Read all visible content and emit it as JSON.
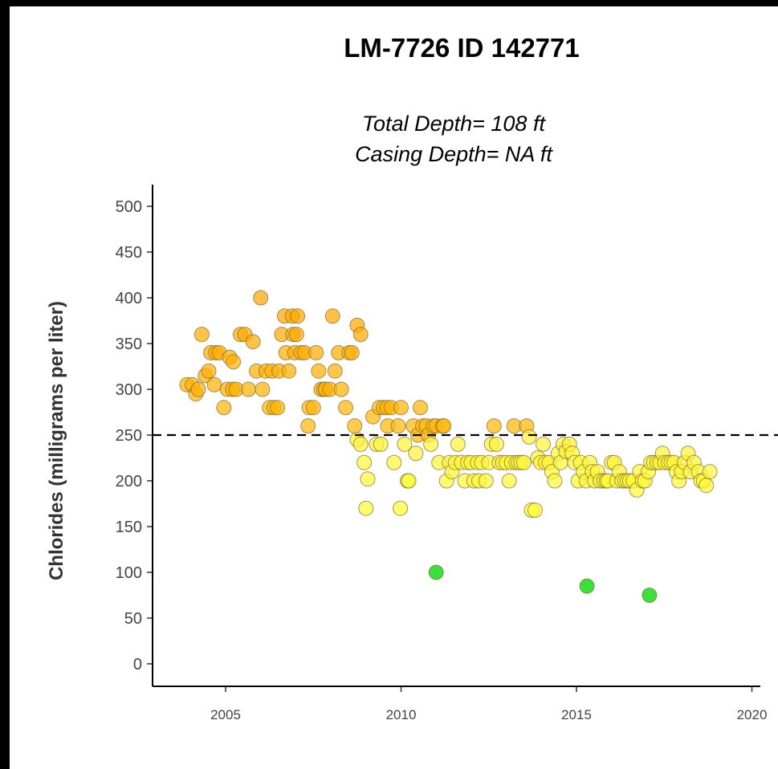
{
  "chart_data": {
    "type": "scatter",
    "title": "LM-7726 ID 142771",
    "subtitle_lines": [
      "Total Depth= 108 ft",
      "Casing Depth= NA ft"
    ],
    "xlabel": "",
    "ylabel": "Chlorides (milligrams per liter)",
    "xlim": [
      2003.4,
      2020.2
    ],
    "ylim": [
      -10,
      520
    ],
    "x_ticks": [
      2005,
      2010,
      2015,
      2020
    ],
    "y_ticks": [
      0,
      50,
      100,
      150,
      200,
      250,
      300,
      350,
      400,
      450,
      500
    ],
    "reference_line": {
      "y": 250,
      "style": "dashed"
    },
    "grid": false,
    "legend": "none",
    "colors": {
      "high": "#FFA500",
      "mid": "#FFFF33",
      "low": "#33DD33",
      "outline": "#7a6a30",
      "refline": "#000000"
    },
    "points": [
      [
        2003.9,
        305
      ],
      [
        2004.05,
        305
      ],
      [
        2004.15,
        295
      ],
      [
        2004.22,
        300
      ],
      [
        2004.32,
        360
      ],
      [
        2004.42,
        315
      ],
      [
        2004.52,
        320
      ],
      [
        2004.58,
        340
      ],
      [
        2004.68,
        305
      ],
      [
        2004.72,
        340
      ],
      [
        2004.82,
        340
      ],
      [
        2004.95,
        280
      ],
      [
        2005.05,
        300
      ],
      [
        2005.12,
        335
      ],
      [
        2005.2,
        300
      ],
      [
        2005.22,
        330
      ],
      [
        2005.3,
        300
      ],
      [
        2005.42,
        360
      ],
      [
        2005.55,
        360
      ],
      [
        2005.65,
        300
      ],
      [
        2005.78,
        352
      ],
      [
        2005.88,
        320
      ],
      [
        2006.0,
        400
      ],
      [
        2006.05,
        300
      ],
      [
        2006.15,
        320
      ],
      [
        2006.25,
        280
      ],
      [
        2006.32,
        320
      ],
      [
        2006.38,
        280
      ],
      [
        2006.48,
        280
      ],
      [
        2006.52,
        320
      ],
      [
        2006.6,
        360
      ],
      [
        2006.68,
        380
      ],
      [
        2006.72,
        340
      ],
      [
        2006.8,
        320
      ],
      [
        2006.9,
        380
      ],
      [
        2006.92,
        360
      ],
      [
        2006.97,
        340
      ],
      [
        2007.02,
        360
      ],
      [
        2007.05,
        380
      ],
      [
        2007.15,
        340
      ],
      [
        2007.25,
        340
      ],
      [
        2007.35,
        260
      ],
      [
        2007.38,
        280
      ],
      [
        2007.5,
        280
      ],
      [
        2007.58,
        340
      ],
      [
        2007.65,
        320
      ],
      [
        2007.72,
        300
      ],
      [
        2007.8,
        300
      ],
      [
        2007.85,
        300
      ],
      [
        2007.97,
        300
      ],
      [
        2008.05,
        380
      ],
      [
        2008.12,
        320
      ],
      [
        2008.22,
        340
      ],
      [
        2008.3,
        300
      ],
      [
        2008.42,
        280
      ],
      [
        2008.52,
        340
      ],
      [
        2008.6,
        340
      ],
      [
        2008.68,
        260
      ],
      [
        2008.75,
        370
      ],
      [
        2008.85,
        360
      ],
      [
        2008.75,
        245
      ],
      [
        2008.85,
        240
      ],
      [
        2008.95,
        220
      ],
      [
        2009.0,
        170
      ],
      [
        2009.05,
        202
      ],
      [
        2009.2,
        270
      ],
      [
        2009.3,
        240
      ],
      [
        2009.38,
        280
      ],
      [
        2009.42,
        240
      ],
      [
        2009.5,
        280
      ],
      [
        2009.6,
        280
      ],
      [
        2009.62,
        260
      ],
      [
        2009.72,
        280
      ],
      [
        2009.8,
        220
      ],
      [
        2009.92,
        260
      ],
      [
        2010.0,
        280
      ],
      [
        2009.98,
        170
      ],
      [
        2010.1,
        240
      ],
      [
        2010.18,
        200
      ],
      [
        2010.22,
        200
      ],
      [
        2010.35,
        260
      ],
      [
        2010.42,
        230
      ],
      [
        2010.48,
        250
      ],
      [
        2010.55,
        280
      ],
      [
        2010.62,
        260
      ],
      [
        2010.72,
        260
      ],
      [
        2010.78,
        250
      ],
      [
        2010.85,
        240
      ],
      [
        2010.92,
        260
      ],
      [
        2011.0,
        260
      ],
      [
        2011.08,
        220
      ],
      [
        2011.18,
        260
      ],
      [
        2011.22,
        260
      ],
      [
        2011.3,
        200
      ],
      [
        2011.38,
        220
      ],
      [
        2011.45,
        210
      ],
      [
        2011.55,
        220
      ],
      [
        2011.62,
        240
      ],
      [
        2011.72,
        220
      ],
      [
        2011.82,
        200
      ],
      [
        2011.9,
        220
      ],
      [
        2012.0,
        220
      ],
      [
        2012.08,
        200
      ],
      [
        2012.18,
        220
      ],
      [
        2012.22,
        200
      ],
      [
        2012.3,
        220
      ],
      [
        2012.42,
        200
      ],
      [
        2012.5,
        220
      ],
      [
        2012.58,
        240
      ],
      [
        2012.65,
        260
      ],
      [
        2012.72,
        240
      ],
      [
        2012.8,
        220
      ],
      [
        2012.9,
        220
      ],
      [
        2013.0,
        220
      ],
      [
        2013.08,
        200
      ],
      [
        2013.15,
        220
      ],
      [
        2013.22,
        260
      ],
      [
        2013.28,
        220
      ],
      [
        2013.35,
        220
      ],
      [
        2013.42,
        220
      ],
      [
        2013.5,
        220
      ],
      [
        2013.58,
        260
      ],
      [
        2013.65,
        248
      ],
      [
        2013.72,
        168
      ],
      [
        2013.82,
        168
      ],
      [
        2013.9,
        225
      ],
      [
        2013.98,
        220
      ],
      [
        2014.05,
        240
      ],
      [
        2014.12,
        220
      ],
      [
        2014.22,
        220
      ],
      [
        2014.3,
        210
      ],
      [
        2014.38,
        200
      ],
      [
        2014.48,
        230
      ],
      [
        2014.55,
        220
      ],
      [
        2014.62,
        240
      ],
      [
        2014.7,
        232
      ],
      [
        2014.8,
        240
      ],
      [
        2014.88,
        230
      ],
      [
        2014.95,
        220
      ],
      [
        2015.05,
        200
      ],
      [
        2015.12,
        220
      ],
      [
        2015.2,
        210
      ],
      [
        2015.28,
        200
      ],
      [
        2015.38,
        220
      ],
      [
        2015.45,
        210
      ],
      [
        2015.52,
        200
      ],
      [
        2015.6,
        210
      ],
      [
        2015.68,
        200
      ],
      [
        2015.78,
        200
      ],
      [
        2015.85,
        200
      ],
      [
        2015.9,
        200
      ],
      [
        2016.0,
        220
      ],
      [
        2016.08,
        220
      ],
      [
        2016.15,
        200
      ],
      [
        2016.22,
        210
      ],
      [
        2016.3,
        200
      ],
      [
        2016.38,
        200
      ],
      [
        2016.45,
        200
      ],
      [
        2016.52,
        200
      ],
      [
        2016.62,
        200
      ],
      [
        2016.72,
        190
      ],
      [
        2016.8,
        210
      ],
      [
        2016.88,
        200
      ],
      [
        2016.95,
        200
      ],
      [
        2017.05,
        210
      ],
      [
        2017.12,
        220
      ],
      [
        2017.2,
        220
      ],
      [
        2017.3,
        220
      ],
      [
        2017.38,
        220
      ],
      [
        2017.45,
        230
      ],
      [
        2017.52,
        220
      ],
      [
        2017.62,
        220
      ],
      [
        2017.7,
        220
      ],
      [
        2017.78,
        220
      ],
      [
        2017.85,
        210
      ],
      [
        2017.92,
        200
      ],
      [
        2018.0,
        210
      ],
      [
        2018.08,
        220
      ],
      [
        2018.18,
        230
      ],
      [
        2018.25,
        210
      ],
      [
        2018.35,
        220
      ],
      [
        2018.48,
        210
      ],
      [
        2018.55,
        200
      ],
      [
        2018.62,
        200
      ],
      [
        2018.7,
        195
      ],
      [
        2018.8,
        210
      ],
      [
        2011.0,
        100
      ],
      [
        2015.3,
        85
      ],
      [
        2017.08,
        75
      ]
    ]
  }
}
